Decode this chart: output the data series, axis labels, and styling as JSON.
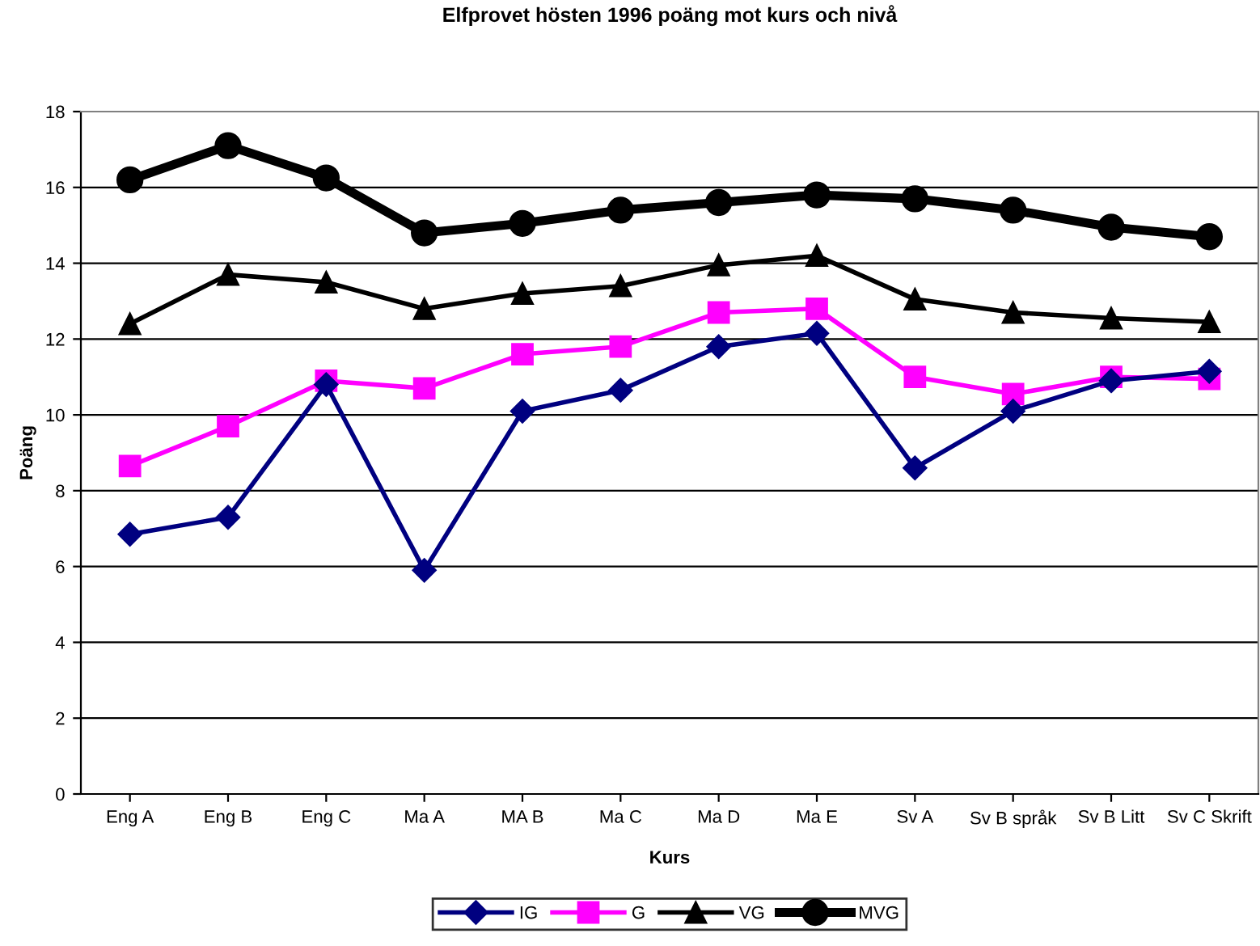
{
  "chart_data": {
    "type": "line",
    "title": "Elfprovet hösten 1996 poäng mot kurs och nivå",
    "xlabel": "Kurs",
    "ylabel": "Poäng",
    "categories": [
      "Eng A",
      "Eng B",
      "Eng C",
      "Ma A",
      "MA B",
      "Ma C",
      "Ma D",
      "Ma E",
      "Sv A",
      "Sv B språk",
      "Sv B Litt",
      "Sv C Skrift"
    ],
    "series": [
      {
        "name": "IG",
        "color": "#000080",
        "marker": "diamond",
        "values": [
          6.85,
          7.3,
          10.8,
          5.9,
          10.1,
          10.65,
          11.8,
          12.15,
          8.6,
          10.1,
          10.9,
          11.15
        ]
      },
      {
        "name": "G",
        "color": "#ff00ff",
        "marker": "square",
        "values": [
          8.65,
          9.7,
          10.9,
          10.7,
          11.6,
          11.8,
          12.7,
          12.8,
          11.0,
          10.55,
          11.0,
          10.95
        ]
      },
      {
        "name": "VG",
        "color": "#000000",
        "marker": "triangle",
        "values": [
          12.4,
          13.7,
          13.5,
          12.8,
          13.2,
          13.4,
          13.95,
          14.2,
          13.05,
          12.7,
          12.55,
          12.45
        ]
      },
      {
        "name": "MVG",
        "color": "#000000",
        "marker": "circle",
        "values": [
          16.2,
          17.1,
          16.25,
          14.8,
          15.05,
          15.4,
          15.6,
          15.8,
          15.7,
          15.4,
          14.95,
          14.7
        ]
      }
    ],
    "ylim": [
      0,
      18
    ],
    "yticks": [
      0,
      2,
      4,
      6,
      8,
      10,
      12,
      14,
      16,
      18
    ],
    "grid": "y",
    "legend": "bottom",
    "line_style": "solid"
  }
}
